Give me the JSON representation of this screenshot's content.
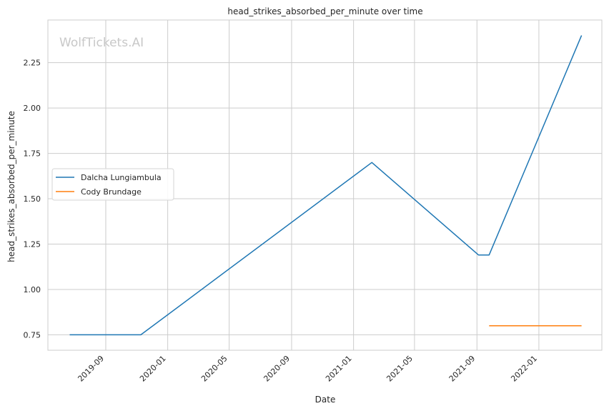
{
  "watermark": "WolfTickets.AI",
  "chart_data": {
    "type": "line",
    "title": "head_strikes_absorbed_per_minute over time",
    "xlabel": "Date",
    "ylabel": "head_strikes_absorbed_per_minute",
    "x_ticks": [
      "2019-09",
      "2020-01",
      "2020-05",
      "2020-09",
      "2021-01",
      "2021-05",
      "2021-09",
      "2022-01"
    ],
    "y_ticks": [
      "0.75",
      "1.00",
      "1.25",
      "1.50",
      "1.75",
      "2.00",
      "2.25"
    ],
    "xlim": [
      "2019-05-10",
      "2022-05-05"
    ],
    "ylim": [
      0.665,
      2.485
    ],
    "grid": true,
    "legend_position": "center-left",
    "series": [
      {
        "name": "Dalcha Lungiambula",
        "color": "#1f77b4",
        "points": [
          {
            "x": "2019-06-22",
            "y": 0.75
          },
          {
            "x": "2019-11-09",
            "y": 0.75
          },
          {
            "x": "2021-02-06",
            "y": 1.7
          },
          {
            "x": "2021-09-04",
            "y": 1.19
          },
          {
            "x": "2021-09-25",
            "y": 1.19
          },
          {
            "x": "2022-03-26",
            "y": 2.4
          }
        ]
      },
      {
        "name": "Cody Brundage",
        "color": "#ff7f0e",
        "points": [
          {
            "x": "2021-09-25",
            "y": 0.8
          },
          {
            "x": "2022-03-26",
            "y": 0.8
          }
        ]
      }
    ]
  }
}
